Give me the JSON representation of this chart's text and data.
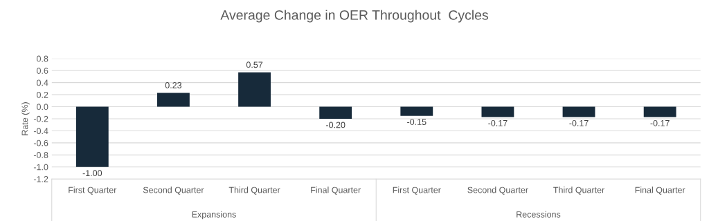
{
  "chart_data": {
    "type": "bar",
    "title": "Average Change in OER Throughout  Cycles",
    "ylabel": "Rate (%)",
    "categories": [
      "First Quarter",
      "Second Quarter",
      "Third Quarter",
      "Final Quarter",
      "First Quarter",
      "Second Quarter",
      "Third Quarter",
      "Final Quarter"
    ],
    "values": [
      -1.0,
      0.23,
      0.57,
      -0.2,
      -0.15,
      -0.17,
      -0.17,
      -0.17
    ],
    "value_labels": [
      "-1.00",
      "0.23",
      "0.57",
      "-0.20",
      "-0.15",
      "-0.17",
      "-0.17",
      "-0.17"
    ],
    "color": "#172a3a",
    "annotations": [
      "Expansions",
      "Recessions"
    ],
    "ylim": [
      -1.2,
      0.8
    ],
    "yticks": [
      {
        "value": -1.2,
        "label": "-1.2"
      },
      {
        "value": -1.0,
        "label": "-1.0"
      },
      {
        "value": -0.8,
        "label": "-0.8"
      },
      {
        "value": -0.6,
        "label": "-0.6"
      },
      {
        "value": -0.4,
        "label": "-0.4"
      },
      {
        "value": -0.2,
        "label": "-0.2"
      },
      {
        "value": 0.0,
        "label": "0.0"
      },
      {
        "value": 0.2,
        "label": "0.2"
      },
      {
        "value": 0.4,
        "label": "0.4"
      },
      {
        "value": 0.6,
        "label": "0.6"
      },
      {
        "value": 0.8,
        "label": "0.8"
      }
    ],
    "grid": "y"
  }
}
